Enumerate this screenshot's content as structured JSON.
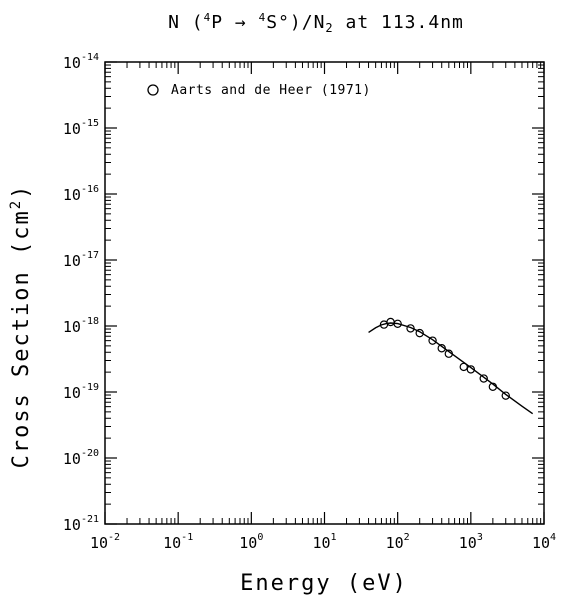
{
  "chart_data": {
    "type": "scatter",
    "title": {
      "prefix": "N (",
      "sup1": "4",
      "mid1": "P → ",
      "sup2": "4",
      "mid2": "S°)/N",
      "sub": "2",
      "suffix": " at 113.4nm"
    },
    "xlabel": "Energy (eV)",
    "ylabel_parts": {
      "main": "Cross Section (cm",
      "sup": "2",
      "end": ")"
    },
    "x_scale": "log",
    "y_scale": "log",
    "xlim": [
      0.01,
      10000
    ],
    "ylim": [
      1e-21,
      1e-14
    ],
    "x_ticks": [
      {
        "base": "10",
        "exp": "-2",
        "value": 0.01
      },
      {
        "base": "10",
        "exp": "-1",
        "value": 0.1
      },
      {
        "base": "10",
        "exp": "0",
        "value": 1
      },
      {
        "base": "10",
        "exp": "1",
        "value": 10
      },
      {
        "base": "10",
        "exp": "2",
        "value": 100
      },
      {
        "base": "10",
        "exp": "3",
        "value": 1000
      },
      {
        "base": "10",
        "exp": "4",
        "value": 10000
      }
    ],
    "y_ticks": [
      {
        "base": "10",
        "exp": "-21",
        "value": 1e-21
      },
      {
        "base": "10",
        "exp": "-20",
        "value": 1e-20
      },
      {
        "base": "10",
        "exp": "-19",
        "value": 1e-19
      },
      {
        "base": "10",
        "exp": "-18",
        "value": 1e-18
      },
      {
        "base": "10",
        "exp": "-17",
        "value": 1e-17
      },
      {
        "base": "10",
        "exp": "-16",
        "value": 1e-16
      },
      {
        "base": "10",
        "exp": "-15",
        "value": 1e-15
      },
      {
        "base": "10",
        "exp": "-14",
        "value": 1e-14
      }
    ],
    "legend": {
      "label": "Aarts and de Heer (1971)",
      "marker": "open-circle",
      "placement": "top-left"
    },
    "series": [
      {
        "name": "Aarts and de Heer (1971)",
        "style": "markers",
        "x": [
          65,
          80,
          100,
          150,
          200,
          300,
          400,
          500,
          800,
          1000,
          1500,
          2000,
          3000
        ],
        "y": [
          1.05e-18,
          1.15e-18,
          1.08e-18,
          9.2e-19,
          7.8e-19,
          6e-19,
          4.6e-19,
          3.8e-19,
          2.4e-19,
          2.2e-19,
          1.6e-19,
          1.2e-19,
          8.8e-20
        ]
      },
      {
        "style": "line",
        "x": [
          40,
          50,
          60,
          70,
          80,
          100,
          150,
          200,
          300,
          500,
          1000,
          2000,
          3000,
          5000,
          7000
        ],
        "y": [
          8e-19,
          9.4e-19,
          1.04e-18,
          1.09e-18,
          1.11e-18,
          1.09e-18,
          9.5e-19,
          8.2e-19,
          6.2e-19,
          4.1e-19,
          2.35e-19,
          1.32e-19,
          9.2e-20,
          6.1e-20,
          4.7e-20
        ]
      }
    ],
    "grid": false
  }
}
